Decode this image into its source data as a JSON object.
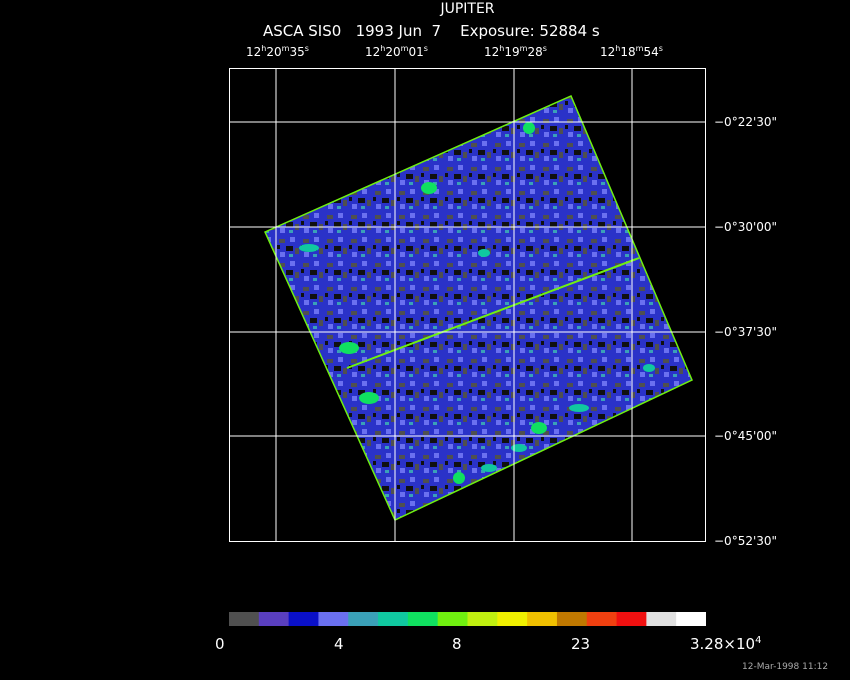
{
  "header": {
    "title": "JUPITER",
    "subtitle": "ASCA SIS0   1993 Jun  7    Exposure: 52884 s"
  },
  "ra_labels": [
    {
      "h": "12",
      "hu": "h",
      "m": "20",
      "mu": "m",
      "s": "35",
      "su": "s"
    },
    {
      "h": "12",
      "hu": "h",
      "m": "20",
      "mu": "m",
      "s": "01",
      "su": "s"
    },
    {
      "h": "12",
      "hu": "h",
      "m": "19",
      "mu": "m",
      "s": "28",
      "su": "s"
    },
    {
      "h": "12",
      "hu": "h",
      "m": "18",
      "mu": "m",
      "s": "54",
      "su": "s"
    }
  ],
  "dec_labels": [
    "−0°22'30\"",
    "−0°30'00\"",
    "−0°37'30\"",
    "−0°45'00\"",
    "−0°52'30\""
  ],
  "colorbar": {
    "colors": [
      "#505050",
      "#5a3fbf",
      "#0a10c8",
      "#6a70f0",
      "#3aa0b8",
      "#10c8a0",
      "#10e060",
      "#70f010",
      "#c0f010",
      "#f0f000",
      "#f0c000",
      "#c07800",
      "#f04010",
      "#f01010",
      "#e0e0e0",
      "#ffffff"
    ],
    "labels": [
      "0",
      "4",
      "8",
      "23",
      "3.28×10"
    ],
    "last_exp": "4"
  },
  "timestamp": "12-Mar-1998 11:12",
  "colors": {
    "background": "#000000",
    "frame": "#ffffff",
    "grid": "#ffffff"
  }
}
